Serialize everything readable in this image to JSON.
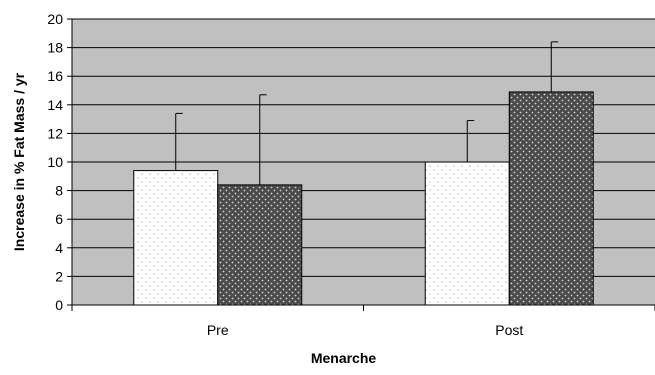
{
  "chart_data": {
    "type": "bar",
    "categories": [
      "Pre",
      "Post"
    ],
    "series": [
      {
        "values": [
          9.4,
          10.0
        ],
        "error": [
          4.0,
          2.9
        ],
        "fill": "light-dotted"
      },
      {
        "values": [
          8.4,
          14.9
        ],
        "error": [
          6.3,
          3.5
        ],
        "fill": "dark-dotted"
      }
    ],
    "xlabel": "Menarche",
    "ylabel": "Increase in % Fat Mass / yr",
    "ylim": [
      0,
      20
    ],
    "yticks": [
      "0",
      "2",
      "4",
      "6",
      "8",
      "10",
      "12",
      "14",
      "16",
      "18",
      "20"
    ],
    "grid": true,
    "colors": {
      "plot_background": "#c0c0c0",
      "gridline": "#000000",
      "light_bar": "#ffffff",
      "light_dots": "#b4b4b4",
      "dark_bar": "#4a4a4a",
      "dark_dots": "#d2d2d2"
    }
  }
}
